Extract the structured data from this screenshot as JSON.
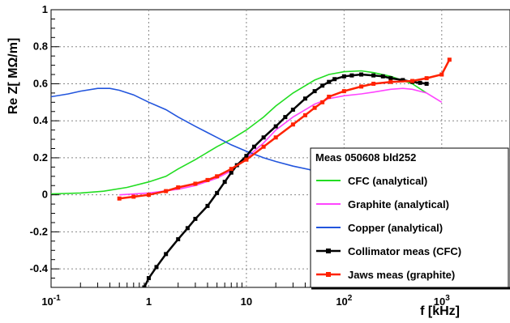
{
  "chart_data": {
    "type": "line",
    "title": "",
    "xlabel": "f [kHz]",
    "ylabel": "Re Z[ MΩ/m]",
    "x_scale": "log",
    "xlim": [
      0.1,
      5000
    ],
    "ylim": [
      -0.5,
      1.0
    ],
    "grid": true,
    "x_ticks": [
      {
        "v": 0.1,
        "base": "10",
        "exp": "-1"
      },
      {
        "v": 1,
        "base": "1",
        "exp": ""
      },
      {
        "v": 10,
        "base": "10",
        "exp": ""
      },
      {
        "v": 100,
        "base": "10",
        "exp": "2"
      },
      {
        "v": 1000,
        "base": "10",
        "exp": "3"
      }
    ],
    "y_ticks": [
      {
        "v": -0.4,
        "label": "-0.4"
      },
      {
        "v": -0.2,
        "label": "-0.2"
      },
      {
        "v": 0,
        "label": "0"
      },
      {
        "v": 0.2,
        "label": "0.2"
      },
      {
        "v": 0.4,
        "label": "0.4"
      },
      {
        "v": 0.6,
        "label": "0.6"
      },
      {
        "v": 0.8,
        "label": "0.8"
      },
      {
        "v": 1,
        "label": "1"
      }
    ],
    "legend": {
      "title": "Meas 050608 bld252",
      "placement": "bottom-right"
    },
    "series": [
      {
        "name": "CFC (analytical)",
        "color": "#22dd22",
        "marker": "none",
        "points": [
          [
            0.1,
            0.005
          ],
          [
            0.2,
            0.01
          ],
          [
            0.35,
            0.02
          ],
          [
            0.6,
            0.04
          ],
          [
            1,
            0.07
          ],
          [
            1.5,
            0.1
          ],
          [
            2,
            0.14
          ],
          [
            3,
            0.19
          ],
          [
            5,
            0.26
          ],
          [
            7,
            0.3
          ],
          [
            10,
            0.35
          ],
          [
            15,
            0.42
          ],
          [
            20,
            0.48
          ],
          [
            30,
            0.55
          ],
          [
            50,
            0.62
          ],
          [
            70,
            0.65
          ],
          [
            100,
            0.665
          ],
          [
            150,
            0.67
          ],
          [
            200,
            0.66
          ],
          [
            300,
            0.64
          ],
          [
            500,
            0.6
          ],
          [
            700,
            0.55
          ]
        ]
      },
      {
        "name": "Graphite (analytical)",
        "color": "#ff44ff",
        "marker": "none",
        "points": [
          [
            0.5,
            0.0
          ],
          [
            1,
            0.01
          ],
          [
            2,
            0.03
          ],
          [
            3,
            0.05
          ],
          [
            5,
            0.09
          ],
          [
            7,
            0.13
          ],
          [
            10,
            0.2
          ],
          [
            15,
            0.28
          ],
          [
            20,
            0.35
          ],
          [
            30,
            0.42
          ],
          [
            50,
            0.49
          ],
          [
            70,
            0.52
          ],
          [
            100,
            0.535
          ],
          [
            150,
            0.545
          ],
          [
            200,
            0.555
          ],
          [
            300,
            0.57
          ],
          [
            400,
            0.575
          ],
          [
            500,
            0.57
          ],
          [
            700,
            0.55
          ],
          [
            1000,
            0.5
          ]
        ]
      },
      {
        "name": "Copper (analytical)",
        "color": "#2255dd",
        "marker": "none",
        "points": [
          [
            0.1,
            0.53
          ],
          [
            0.15,
            0.545
          ],
          [
            0.2,
            0.56
          ],
          [
            0.3,
            0.575
          ],
          [
            0.4,
            0.575
          ],
          [
            0.5,
            0.565
          ],
          [
            0.7,
            0.54
          ],
          [
            1,
            0.5
          ],
          [
            1.5,
            0.46
          ],
          [
            2,
            0.42
          ],
          [
            3,
            0.37
          ],
          [
            5,
            0.31
          ],
          [
            7,
            0.27
          ],
          [
            10,
            0.235
          ],
          [
            15,
            0.2
          ],
          [
            20,
            0.18
          ],
          [
            30,
            0.155
          ],
          [
            50,
            0.13
          ],
          [
            70,
            0.12
          ]
        ]
      },
      {
        "name": "Collimator meas (CFC)",
        "color": "#000000",
        "marker": "square",
        "points": [
          [
            0.9,
            -0.5
          ],
          [
            1,
            -0.45
          ],
          [
            1.2,
            -0.39
          ],
          [
            1.5,
            -0.32
          ],
          [
            2,
            -0.24
          ],
          [
            2.5,
            -0.18
          ],
          [
            3,
            -0.13
          ],
          [
            4,
            -0.06
          ],
          [
            5,
            0.01
          ],
          [
            6,
            0.07
          ],
          [
            7,
            0.12
          ],
          [
            8,
            0.16
          ],
          [
            10,
            0.21
          ],
          [
            12,
            0.26
          ],
          [
            15,
            0.31
          ],
          [
            20,
            0.37
          ],
          [
            25,
            0.42
          ],
          [
            30,
            0.46
          ],
          [
            40,
            0.52
          ],
          [
            50,
            0.56
          ],
          [
            60,
            0.59
          ],
          [
            70,
            0.61
          ],
          [
            80,
            0.625
          ],
          [
            100,
            0.64
          ],
          [
            120,
            0.645
          ],
          [
            150,
            0.65
          ],
          [
            200,
            0.645
          ],
          [
            250,
            0.64
          ],
          [
            300,
            0.63
          ],
          [
            400,
            0.62
          ],
          [
            500,
            0.61
          ],
          [
            600,
            0.605
          ],
          [
            700,
            0.6
          ]
        ]
      },
      {
        "name": "Jaws meas (graphite)",
        "color": "#ff2200",
        "marker": "square",
        "points": [
          [
            0.5,
            -0.02
          ],
          [
            0.7,
            -0.01
          ],
          [
            1,
            0.0
          ],
          [
            1.5,
            0.02
          ],
          [
            2,
            0.04
          ],
          [
            3,
            0.06
          ],
          [
            4,
            0.08
          ],
          [
            5,
            0.1
          ],
          [
            7,
            0.14
          ],
          [
            10,
            0.19
          ],
          [
            15,
            0.26
          ],
          [
            20,
            0.31
          ],
          [
            30,
            0.38
          ],
          [
            40,
            0.43
          ],
          [
            50,
            0.47
          ],
          [
            60,
            0.5
          ],
          [
            70,
            0.53
          ],
          [
            100,
            0.56
          ],
          [
            150,
            0.585
          ],
          [
            200,
            0.6
          ],
          [
            300,
            0.61
          ],
          [
            500,
            0.615
          ],
          [
            700,
            0.63
          ],
          [
            1000,
            0.65
          ],
          [
            1200,
            0.73
          ]
        ]
      }
    ]
  }
}
